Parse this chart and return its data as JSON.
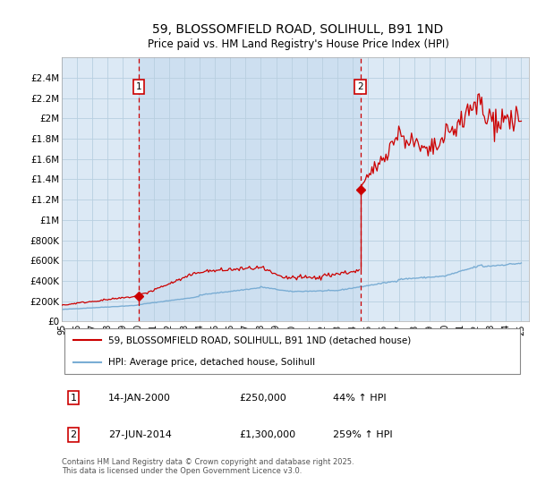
{
  "title": "59, BLOSSOMFIELD ROAD, SOLIHULL, B91 1ND",
  "subtitle": "Price paid vs. HM Land Registry's House Price Index (HPI)",
  "title_fontsize": 10,
  "subtitle_fontsize": 8.5,
  "background_color": "#ffffff",
  "plot_bg_color": "#dce9f5",
  "grid_color": "#b8cfe0",
  "xmin": 1995.0,
  "xmax": 2025.5,
  "ymin": 0,
  "ymax": 2600000,
  "yticks": [
    0,
    200000,
    400000,
    600000,
    800000,
    1000000,
    1200000,
    1400000,
    1600000,
    1800000,
    2000000,
    2200000,
    2400000
  ],
  "ytick_labels": [
    "£0",
    "£200K",
    "£400K",
    "£600K",
    "£800K",
    "£1M",
    "£1.2M",
    "£1.4M",
    "£1.6M",
    "£1.8M",
    "£2M",
    "£2.2M",
    "£2.4M"
  ],
  "xticks": [
    1995,
    1996,
    1997,
    1998,
    1999,
    2000,
    2001,
    2002,
    2003,
    2004,
    2005,
    2006,
    2007,
    2008,
    2009,
    2010,
    2011,
    2012,
    2013,
    2014,
    2015,
    2016,
    2017,
    2018,
    2019,
    2020,
    2021,
    2022,
    2023,
    2024,
    2025
  ],
  "sale1_x": 2000.04,
  "sale1_y": 250000,
  "sale2_x": 2014.49,
  "sale2_y": 1300000,
  "red_line_color": "#cc0000",
  "blue_line_color": "#7aadd4",
  "shade_between_color": "#cddff0",
  "marker_box_color": "#cc0000",
  "legend_label_red": "59, BLOSSOMFIELD ROAD, SOLIHULL, B91 1ND (detached house)",
  "legend_label_blue": "HPI: Average price, detached house, Solihull",
  "table_row1": [
    "1",
    "14-JAN-2000",
    "£250,000",
    "44% ↑ HPI"
  ],
  "table_row2": [
    "2",
    "27-JUN-2014",
    "£1,300,000",
    "259% ↑ HPI"
  ],
  "footer": "Contains HM Land Registry data © Crown copyright and database right 2025.\nThis data is licensed under the Open Government Licence v3.0."
}
